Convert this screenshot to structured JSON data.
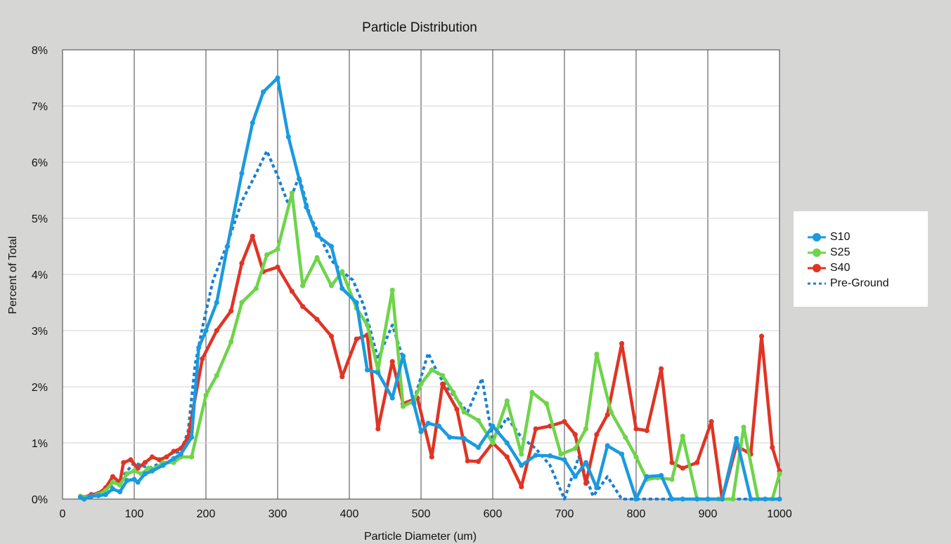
{
  "chart_data": {
    "type": "line",
    "title": "Particle Distribution",
    "xlabel": "Particle Diameter (um)",
    "ylabel": "Percent of Total",
    "xlim": [
      0,
      1000
    ],
    "ylim": [
      0,
      8
    ],
    "x_ticks": [
      "0",
      "100",
      "200",
      "300",
      "400",
      "500",
      "600",
      "700",
      "800",
      "900",
      "1000"
    ],
    "y_ticks": [
      "0%",
      "1%",
      "2%",
      "3%",
      "4%",
      "5%",
      "6%",
      "7%",
      "8%"
    ],
    "grid": true,
    "legend_position": "right",
    "x": [
      25,
      31,
      38,
      45,
      53,
      63,
      75,
      90,
      106,
      125,
      150,
      180,
      212,
      250,
      300,
      355,
      425,
      500,
      600,
      710,
      850,
      1000
    ],
    "series": [
      {
        "name": "S10",
        "color": "#1a9ae0",
        "style": "solid",
        "points": [
          [
            25,
            0.03
          ],
          [
            30,
            0
          ],
          [
            40,
            0.05
          ],
          [
            50,
            0.06
          ],
          [
            60,
            0.08
          ],
          [
            70,
            0.18
          ],
          [
            80,
            0.13
          ],
          [
            90,
            0.33
          ],
          [
            100,
            0.35
          ],
          [
            105,
            0.3
          ],
          [
            115,
            0.45
          ],
          [
            125,
            0.5
          ],
          [
            140,
            0.6
          ],
          [
            155,
            0.72
          ],
          [
            165,
            0.8
          ],
          [
            180,
            1.1
          ],
          [
            190,
            2.7
          ],
          [
            200,
            3
          ],
          [
            215,
            3.5
          ],
          [
            230,
            4.5
          ],
          [
            250,
            5.8
          ],
          [
            265,
            6.7
          ],
          [
            280,
            7.25
          ],
          [
            300,
            7.5
          ],
          [
            315,
            6.45
          ],
          [
            330,
            5.7
          ],
          [
            340,
            5.2
          ],
          [
            355,
            4.7
          ],
          [
            375,
            4.5
          ],
          [
            390,
            3.75
          ],
          [
            410,
            3.5
          ],
          [
            425,
            2.3
          ],
          [
            440,
            2.25
          ],
          [
            460,
            1.8
          ],
          [
            475,
            2.55
          ],
          [
            490,
            1.7
          ],
          [
            500,
            1.2
          ],
          [
            510,
            1.35
          ],
          [
            525,
            1.3
          ],
          [
            540,
            1.1
          ],
          [
            560,
            1.08
          ],
          [
            580,
            0.92
          ],
          [
            600,
            1.3
          ],
          [
            620,
            1.0
          ],
          [
            640,
            0.6
          ],
          [
            660,
            0.78
          ],
          [
            680,
            0.77
          ],
          [
            700,
            0.7
          ],
          [
            715,
            0.4
          ],
          [
            730,
            0.65
          ],
          [
            745,
            0.2
          ],
          [
            760,
            0.95
          ],
          [
            780,
            0.8
          ],
          [
            800,
            0
          ],
          [
            815,
            0.4
          ],
          [
            835,
            0.42
          ],
          [
            850,
            0
          ],
          [
            865,
            0
          ],
          [
            885,
            0
          ],
          [
            900,
            0
          ],
          [
            920,
            0
          ],
          [
            940,
            1.08
          ],
          [
            960,
            0
          ],
          [
            980,
            0
          ],
          [
            1000,
            0
          ]
        ]
      },
      {
        "name": "S25",
        "color": "#6ed44a",
        "style": "solid",
        "points": [
          [
            25,
            0.05
          ],
          [
            30,
            0.03
          ],
          [
            40,
            0.05
          ],
          [
            50,
            0.08
          ],
          [
            60,
            0.15
          ],
          [
            70,
            0.3
          ],
          [
            80,
            0.25
          ],
          [
            90,
            0.45
          ],
          [
            100,
            0.5
          ],
          [
            110,
            0.45
          ],
          [
            120,
            0.55
          ],
          [
            130,
            0.55
          ],
          [
            140,
            0.65
          ],
          [
            155,
            0.65
          ],
          [
            165,
            0.75
          ],
          [
            180,
            0.75
          ],
          [
            200,
            1.85
          ],
          [
            215,
            2.2
          ],
          [
            235,
            2.8
          ],
          [
            250,
            3.5
          ],
          [
            270,
            3.75
          ],
          [
            285,
            4.35
          ],
          [
            300,
            4.45
          ],
          [
            320,
            5.45
          ],
          [
            335,
            3.8
          ],
          [
            355,
            4.3
          ],
          [
            375,
            3.8
          ],
          [
            390,
            4.05
          ],
          [
            410,
            3.4
          ],
          [
            425,
            3.1
          ],
          [
            440,
            2.3
          ],
          [
            460,
            3.72
          ],
          [
            475,
            1.65
          ],
          [
            490,
            1.75
          ],
          [
            500,
            2.05
          ],
          [
            515,
            2.3
          ],
          [
            530,
            2.2
          ],
          [
            545,
            1.9
          ],
          [
            560,
            1.55
          ],
          [
            580,
            1.4
          ],
          [
            600,
            1.0
          ],
          [
            620,
            1.75
          ],
          [
            640,
            0.8
          ],
          [
            655,
            1.9
          ],
          [
            675,
            1.7
          ],
          [
            695,
            0.8
          ],
          [
            715,
            0.9
          ],
          [
            730,
            1.25
          ],
          [
            745,
            2.58
          ],
          [
            765,
            1.55
          ],
          [
            785,
            1.1
          ],
          [
            800,
            0.75
          ],
          [
            815,
            0.35
          ],
          [
            830,
            0.38
          ],
          [
            850,
            0.35
          ],
          [
            865,
            1.12
          ],
          [
            885,
            0
          ],
          [
            900,
            0
          ],
          [
            915,
            0
          ],
          [
            935,
            0
          ],
          [
            950,
            1.28
          ],
          [
            970,
            0
          ],
          [
            990,
            0
          ],
          [
            1000,
            0.45
          ]
        ]
      },
      {
        "name": "S40",
        "color": "#e03424",
        "style": "solid",
        "points": [
          [
            25,
            0.05
          ],
          [
            30,
            0.03
          ],
          [
            40,
            0.08
          ],
          [
            50,
            0.1
          ],
          [
            60,
            0.2
          ],
          [
            70,
            0.4
          ],
          [
            80,
            0.3
          ],
          [
            85,
            0.65
          ],
          [
            95,
            0.7
          ],
          [
            105,
            0.55
          ],
          [
            115,
            0.65
          ],
          [
            125,
            0.75
          ],
          [
            135,
            0.7
          ],
          [
            145,
            0.75
          ],
          [
            155,
            0.85
          ],
          [
            165,
            0.9
          ],
          [
            175,
            1.1
          ],
          [
            195,
            2.5
          ],
          [
            215,
            3.0
          ],
          [
            235,
            3.35
          ],
          [
            250,
            4.2
          ],
          [
            265,
            4.68
          ],
          [
            280,
            4.05
          ],
          [
            300,
            4.13
          ],
          [
            320,
            3.7
          ],
          [
            335,
            3.43
          ],
          [
            355,
            3.2
          ],
          [
            375,
            2.9
          ],
          [
            390,
            2.18
          ],
          [
            410,
            2.85
          ],
          [
            425,
            2.92
          ],
          [
            440,
            1.25
          ],
          [
            460,
            2.45
          ],
          [
            475,
            1.7
          ],
          [
            495,
            1.8
          ],
          [
            515,
            0.75
          ],
          [
            530,
            2.05
          ],
          [
            550,
            1.6
          ],
          [
            565,
            0.68
          ],
          [
            580,
            0.67
          ],
          [
            600,
            1.0
          ],
          [
            620,
            0.75
          ],
          [
            640,
            0.22
          ],
          [
            660,
            1.25
          ],
          [
            680,
            1.3
          ],
          [
            700,
            1.38
          ],
          [
            715,
            1.15
          ],
          [
            730,
            0.28
          ],
          [
            745,
            1.15
          ],
          [
            760,
            1.5
          ],
          [
            780,
            2.77
          ],
          [
            800,
            1.25
          ],
          [
            815,
            1.22
          ],
          [
            835,
            2.32
          ],
          [
            850,
            0.65
          ],
          [
            865,
            0.55
          ],
          [
            885,
            0.65
          ],
          [
            905,
            1.38
          ],
          [
            920,
            0
          ],
          [
            940,
            0.95
          ],
          [
            960,
            0.8
          ],
          [
            975,
            2.9
          ],
          [
            990,
            0.92
          ],
          [
            1000,
            0.5
          ]
        ]
      },
      {
        "name": "Pre-Ground",
        "color": "#1a7fd0",
        "style": "dashed",
        "points": [
          [
            25,
            0.05
          ],
          [
            30,
            0.03
          ],
          [
            40,
            0.08
          ],
          [
            50,
            0.1
          ],
          [
            60,
            0.15
          ],
          [
            70,
            0.25
          ],
          [
            80,
            0.35
          ],
          [
            90,
            0.5
          ],
          [
            100,
            0.65
          ],
          [
            110,
            0.6
          ],
          [
            120,
            0.55
          ],
          [
            130,
            0.6
          ],
          [
            140,
            0.7
          ],
          [
            150,
            0.8
          ],
          [
            165,
            0.85
          ],
          [
            175,
            1.2
          ],
          [
            185,
            2.4
          ],
          [
            195,
            3.05
          ],
          [
            210,
            3.9
          ],
          [
            230,
            4.55
          ],
          [
            250,
            5.3
          ],
          [
            270,
            5.8
          ],
          [
            285,
            6.2
          ],
          [
            300,
            5.75
          ],
          [
            315,
            5.25
          ],
          [
            330,
            5.75
          ],
          [
            345,
            5.05
          ],
          [
            360,
            4.65
          ],
          [
            375,
            4.25
          ],
          [
            390,
            4.05
          ],
          [
            405,
            3.9
          ],
          [
            420,
            3.45
          ],
          [
            440,
            2.5
          ],
          [
            460,
            3.1
          ],
          [
            475,
            2.5
          ],
          [
            490,
            1.75
          ],
          [
            510,
            2.6
          ],
          [
            525,
            2.2
          ],
          [
            545,
            1.85
          ],
          [
            565,
            1.55
          ],
          [
            585,
            2.15
          ],
          [
            600,
            1.05
          ],
          [
            620,
            1.45
          ],
          [
            640,
            1.1
          ],
          [
            660,
            0.9
          ],
          [
            680,
            0.6
          ],
          [
            700,
            0.0
          ],
          [
            720,
            0.75
          ],
          [
            740,
            0.05
          ],
          [
            760,
            0.4
          ],
          [
            780,
            0.0
          ],
          [
            800,
            0.0
          ],
          [
            820,
            0.0
          ],
          [
            850,
            0.0
          ],
          [
            880,
            0.0
          ],
          [
            900,
            0.0
          ],
          [
            950,
            0.0
          ],
          [
            1000,
            0.0
          ]
        ]
      }
    ]
  }
}
